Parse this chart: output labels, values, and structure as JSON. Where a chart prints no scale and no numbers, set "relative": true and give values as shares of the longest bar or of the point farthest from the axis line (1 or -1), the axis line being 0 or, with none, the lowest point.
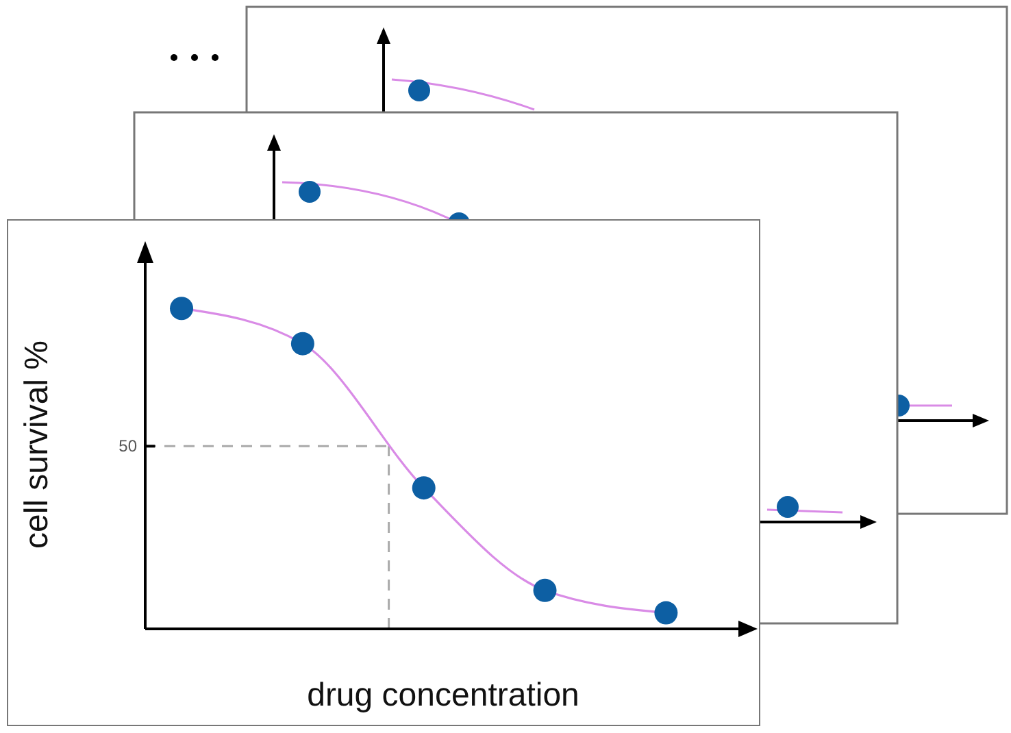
{
  "chart_data": {
    "type": "line",
    "xlabel": "drug concentration",
    "ylabel": "cell survival %",
    "relative": true,
    "categories": [
      null,
      null,
      null,
      null,
      null
    ],
    "series": [
      {
        "type": "line",
        "color": "#d98be6",
        "colors": [
          "#0d5fa3",
          "#0d5fa3",
          "#0d5fa3",
          "#0d5fa3",
          "#0d5fa3"
        ],
        "marker": "circle",
        "values": [
          1,
          0.89,
          0.44,
          0.12,
          0.05
        ]
      }
    ],
    "ref_lines": [
      {
        "axis": "y",
        "value": 0.57,
        "color": "#aaaaaa",
        "line_style": "dashed"
      }
    ],
    "annotations": [
      "50"
    ],
    "legend": false,
    "grid": false
  }
}
